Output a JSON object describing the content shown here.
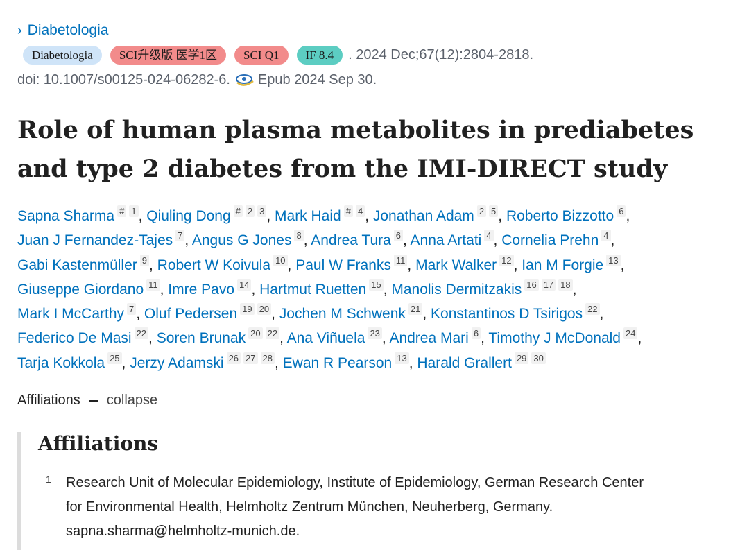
{
  "journal": {
    "name": "Diabetologia"
  },
  "badges": {
    "journal": "Diabetologia",
    "sci": "SCI升级版 医学1区",
    "quartile": "SCI Q1",
    "impact": "IF 8.4"
  },
  "citation": ". 2024 Dec;67(12):2804-2818.",
  "doi": "doi: 10.1007/s00125-024-06282-6.",
  "epub": "Epub 2024 Sep 30.",
  "article": {
    "title": "Role of human plasma metabolites in prediabetes and type 2 diabetes from the IMI-DIRECT study"
  },
  "authors": [
    {
      "name": "Sapna Sharma",
      "marks": [
        "#",
        "1"
      ]
    },
    {
      "name": "Qiuling Dong",
      "marks": [
        "#",
        "2",
        "3"
      ]
    },
    {
      "name": "Mark Haid",
      "marks": [
        "#",
        "4"
      ]
    },
    {
      "name": "Jonathan Adam",
      "marks": [
        "2",
        "5"
      ]
    },
    {
      "name": "Roberto Bizzotto",
      "marks": [
        "6"
      ]
    },
    {
      "name": "Juan J Fernandez-Tajes",
      "marks": [
        "7"
      ]
    },
    {
      "name": "Angus G Jones",
      "marks": [
        "8"
      ]
    },
    {
      "name": "Andrea Tura",
      "marks": [
        "6"
      ]
    },
    {
      "name": "Anna Artati",
      "marks": [
        "4"
      ]
    },
    {
      "name": "Cornelia Prehn",
      "marks": [
        "4"
      ]
    },
    {
      "name": "Gabi Kastenmüller",
      "marks": [
        "9"
      ]
    },
    {
      "name": "Robert W Koivula",
      "marks": [
        "10"
      ]
    },
    {
      "name": "Paul W Franks",
      "marks": [
        "11"
      ]
    },
    {
      "name": "Mark Walker",
      "marks": [
        "12"
      ]
    },
    {
      "name": "Ian M Forgie",
      "marks": [
        "13"
      ]
    },
    {
      "name": "Giuseppe Giordano",
      "marks": [
        "11"
      ]
    },
    {
      "name": "Imre Pavo",
      "marks": [
        "14"
      ]
    },
    {
      "name": "Hartmut Ruetten",
      "marks": [
        "15"
      ]
    },
    {
      "name": "Manolis Dermitzakis",
      "marks": [
        "16",
        "17",
        "18"
      ]
    },
    {
      "name": "Mark I McCarthy",
      "marks": [
        "7"
      ]
    },
    {
      "name": "Oluf Pedersen",
      "marks": [
        "19",
        "20"
      ]
    },
    {
      "name": "Jochen M Schwenk",
      "marks": [
        "21"
      ]
    },
    {
      "name": "Konstantinos D Tsirigos",
      "marks": [
        "22"
      ]
    },
    {
      "name": "Federico De Masi",
      "marks": [
        "22"
      ]
    },
    {
      "name": "Soren Brunak",
      "marks": [
        "20",
        "22"
      ]
    },
    {
      "name": "Ana Viñuela",
      "marks": [
        "23"
      ]
    },
    {
      "name": "Andrea Mari",
      "marks": [
        "6"
      ]
    },
    {
      "name": "Timothy J McDonald",
      "marks": [
        "24"
      ]
    },
    {
      "name": "Tarja Kokkola",
      "marks": [
        "25"
      ]
    },
    {
      "name": "Jerzy Adamski",
      "marks": [
        "26",
        "27",
        "28"
      ]
    },
    {
      "name": "Ewan R Pearson",
      "marks": [
        "13"
      ]
    },
    {
      "name": "Harald Grallert",
      "marks": [
        "29",
        "30"
      ]
    }
  ],
  "affiliations": {
    "toggle_label": "Affiliations",
    "collapse_label": "collapse",
    "heading": "Affiliations",
    "items": [
      {
        "num": "1",
        "line1": "Research Unit of Molecular Epidemiology, Institute of Epidemiology, German Research Center",
        "line2": "for Environmental Health, Helmholtz Zentrum München, Neuherberg, Germany.",
        "line3": "sapna.sharma@helmholtz-munich.de."
      }
    ]
  },
  "colors": {
    "link": "#0071bc",
    "badge_journal": "#cfe4f8",
    "badge_sci": "#f28b8b",
    "badge_if": "#5ccdc2"
  },
  "icons": {
    "journal_chevron": "chevron-right-icon",
    "epub": "epub-icon"
  }
}
